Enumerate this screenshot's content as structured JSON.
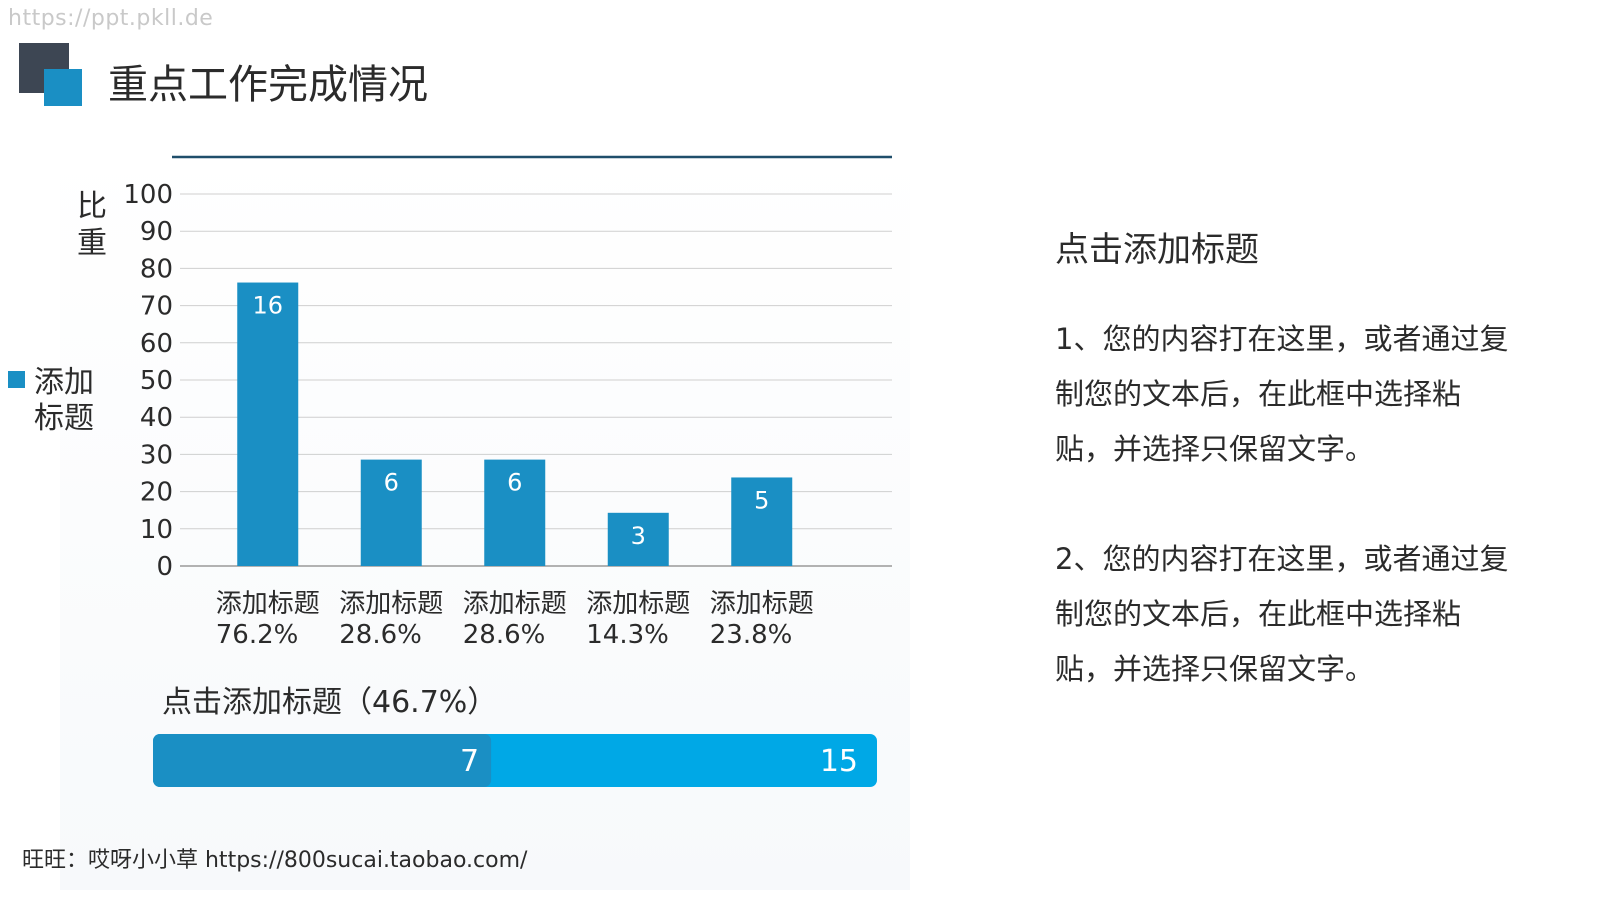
{
  "watermark": "https://ppt.pkll.de",
  "page_title": "重点工作完成情况",
  "chart_data": {
    "type": "bar",
    "categories": [
      "添加标题\n76.2%",
      "添加标题\n28.6%",
      "添加标题\n28.6%",
      "添加标题\n14.3%",
      "添加标题\n23.8%"
    ],
    "category_lines": [
      [
        "添加标题",
        "76.2%"
      ],
      [
        "添加标题",
        "28.6%"
      ],
      [
        "添加标题",
        "28.6%"
      ],
      [
        "添加标题",
        "14.3%"
      ],
      [
        "添加标题",
        "23.8%"
      ]
    ],
    "values": [
      76.2,
      28.6,
      28.6,
      14.3,
      23.8
    ],
    "data_labels": [
      "16",
      "6",
      "6",
      "3",
      "5"
    ],
    "series_name": "添加标题",
    "ylabel": "比重",
    "ylim": [
      0,
      100
    ],
    "yticks": [
      0,
      10,
      20,
      30,
      40,
      50,
      60,
      70,
      80,
      90,
      100
    ],
    "grid": true,
    "legend_position": "left",
    "bar_color": "#1a8fc4"
  },
  "progress": {
    "title": "点击添加标题（46.7%）",
    "value_label": "7",
    "total_label": "15",
    "fraction": 0.467,
    "fill_color": "#1a8fc4",
    "track_color": "#00a8e6"
  },
  "side": {
    "title": "点击添加标题",
    "paragraphs": [
      "1、您的内容打在这里，或者通过复制您的文本后，在此框中选择粘贴，并选择只保留文字。",
      "2、您的内容打在这里，或者通过复制您的文本后，在此框中选择粘贴，并选择只保留文字。"
    ]
  },
  "footer": "旺旺：哎呀小小草 https://800sucai.taobao.com/"
}
